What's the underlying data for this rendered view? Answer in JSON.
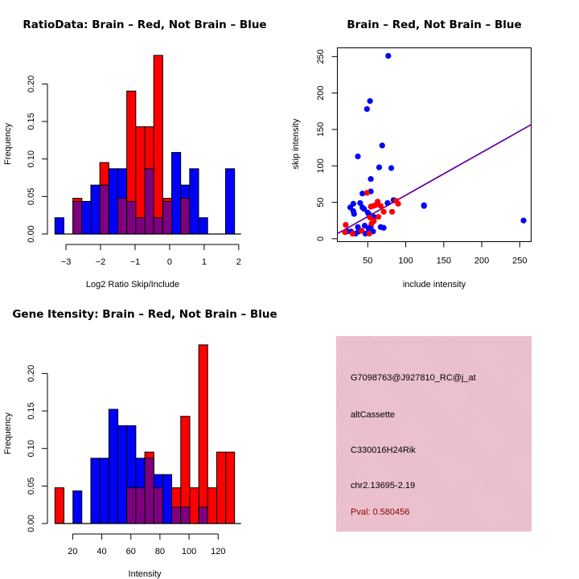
{
  "colors": {
    "brain": "#ff0000",
    "not_brain": "#0000ff",
    "overlap": "#7f007f",
    "info_bg": "#ecbccb",
    "pval_text": "#8b0000"
  },
  "chart_data": [
    {
      "type": "bar",
      "subtype": "overlaid-histogram",
      "title": "RatioData: Brain – Red, Not Brain – Blue",
      "xlabel": "Log2 Ratio Skip/Include",
      "ylabel": "Frequency",
      "xlim": [
        -3.32,
        1.88
      ],
      "ylim": [
        0,
        0.24
      ],
      "xticks": [
        -3,
        -2,
        -1,
        0,
        1,
        2
      ],
      "xtick_labels": [
        "−3",
        "−2",
        "−1",
        "0",
        "1",
        "2"
      ],
      "yticks": [
        0,
        0.05,
        0.1,
        0.15,
        0.2
      ],
      "ytick_labels": [
        "0.00",
        "0.05",
        "0.10",
        "0.15",
        "0.20"
      ],
      "bin_edges": [
        -3.32,
        -3.06,
        -2.8,
        -2.54,
        -2.28,
        -2.02,
        -1.76,
        -1.5,
        -1.24,
        -0.98,
        -0.72,
        -0.46,
        -0.2,
        0.06,
        0.32,
        0.58,
        0.84,
        1.1,
        1.36,
        1.62,
        1.88
      ],
      "series": [
        {
          "name": "Brain",
          "color": "red",
          "values": [
            0,
            0,
            0.0476,
            0,
            0,
            0.0952,
            0,
            0.0476,
            0.1905,
            0.1429,
            0.1429,
            0.2381,
            0.0476,
            0,
            0.0476,
            0,
            0,
            0,
            0,
            0
          ]
        },
        {
          "name": "Not Brain",
          "color": "blue",
          "values": [
            0.0217,
            0,
            0.0435,
            0.0435,
            0.0652,
            0.0652,
            0.087,
            0.087,
            0.0435,
            0.0217,
            0.087,
            0.0217,
            0.0435,
            0.1087,
            0.0652,
            0.087,
            0.0217,
            0,
            0,
            0.087
          ]
        }
      ]
    },
    {
      "type": "scatter",
      "title": "Brain – Red, Not Brain – Blue",
      "xlabel": "include intensity",
      "ylabel": "skip intensity",
      "xlim": [
        10,
        265
      ],
      "ylim": [
        -4,
        262
      ],
      "xticks": [
        50,
        100,
        150,
        200,
        250
      ],
      "yticks": [
        0,
        50,
        100,
        150,
        200,
        250
      ],
      "regression_line": {
        "slope": 0.587,
        "intercept": 0.5,
        "colors": [
          "red",
          "blue"
        ]
      },
      "series": [
        {
          "name": "Brain",
          "color": "red",
          "points": [
            [
              49,
              63
            ],
            [
              63,
              51
            ],
            [
              57,
              45
            ],
            [
              54,
              44
            ],
            [
              60,
              46
            ],
            [
              67,
              45
            ],
            [
              71,
              37
            ],
            [
              87,
              52
            ],
            [
              90,
              48
            ],
            [
              82,
              37
            ],
            [
              64,
              30
            ],
            [
              53,
              29
            ],
            [
              55,
              21
            ],
            [
              58,
              24
            ],
            [
              21,
              19
            ],
            [
              20,
              9
            ],
            [
              30,
              7
            ],
            [
              42,
              11
            ],
            [
              52,
              7
            ]
          ]
        },
        {
          "name": "Not Brain",
          "color": "blue",
          "points": [
            [
              77,
              251
            ],
            [
              49,
              178
            ],
            [
              53,
              189
            ],
            [
              37,
              113
            ],
            [
              69,
              128
            ],
            [
              65,
              98
            ],
            [
              81,
              97
            ],
            [
              54,
              82
            ],
            [
              54,
              65
            ],
            [
              43,
              62
            ],
            [
              31,
              48
            ],
            [
              27,
              43
            ],
            [
              31,
              38
            ],
            [
              32,
              34
            ],
            [
              40,
              49
            ],
            [
              43,
              43
            ],
            [
              45,
              41
            ],
            [
              50,
              36
            ],
            [
              52,
              33
            ],
            [
              58,
              30
            ],
            [
              76,
              49
            ],
            [
              84,
              53
            ],
            [
              124,
              45
            ],
            [
              124,
              46
            ],
            [
              255,
              25
            ],
            [
              67,
              16
            ],
            [
              71,
              15
            ],
            [
              23,
              10
            ],
            [
              28,
              10
            ],
            [
              34,
              7
            ],
            [
              37,
              16
            ],
            [
              38,
              10
            ],
            [
              46,
              18
            ],
            [
              47,
              7
            ],
            [
              51,
              14
            ],
            [
              54,
              17
            ],
            [
              57,
              10
            ],
            [
              52,
              10
            ]
          ]
        }
      ]
    },
    {
      "type": "bar",
      "subtype": "overlaid-histogram",
      "title": "Gene Itensity: Brain – Red, Not Brain – Blue",
      "xlabel": "Intensity",
      "ylabel": "Frequency",
      "xlim": [
        7.8,
        131.3
      ],
      "ylim": [
        0,
        0.24
      ],
      "xticks": [
        20,
        40,
        60,
        80,
        100,
        120
      ],
      "xtick_labels": [
        "20",
        "40",
        "60",
        "80",
        "100",
        "120"
      ],
      "yticks": [
        0,
        0.05,
        0.1,
        0.15,
        0.2
      ],
      "ytick_labels": [
        "0.00",
        "0.05",
        "0.10",
        "0.15",
        "0.20"
      ],
      "bin_edges": [
        7.8,
        14.0,
        20.2,
        26.3,
        32.5,
        38.7,
        44.9,
        51.1,
        57.2,
        63.4,
        69.6,
        75.8,
        81.9,
        88.1,
        94.3,
        100.5,
        106.7,
        112.8,
        119.0,
        125.2,
        131.3
      ],
      "series": [
        {
          "name": "Brain",
          "color": "red",
          "values": [
            0.0476,
            0,
            0,
            0,
            0,
            0,
            0,
            0,
            0.0476,
            0.0476,
            0.0952,
            0.0476,
            0,
            0.0476,
            0.1429,
            0.0476,
            0.2381,
            0.0476,
            0.0952,
            0.0952
          ]
        },
        {
          "name": "Not Brain",
          "color": "blue",
          "values": [
            0,
            0,
            0.0435,
            0,
            0.087,
            0.087,
            0.1522,
            0.1304,
            0.1304,
            0.087,
            0.087,
            0.0652,
            0.0652,
            0.0217,
            0.0217,
            0,
            0.0217,
            0,
            0,
            0
          ]
        }
      ]
    }
  ],
  "info_panel": {
    "probe_id": "G7098763@J927810_RC@j_at",
    "event_type": "altCassette",
    "gene": "C330016H24Rik",
    "location": "chr2.13695-2.19",
    "pval": "Pval: 0.580456"
  }
}
